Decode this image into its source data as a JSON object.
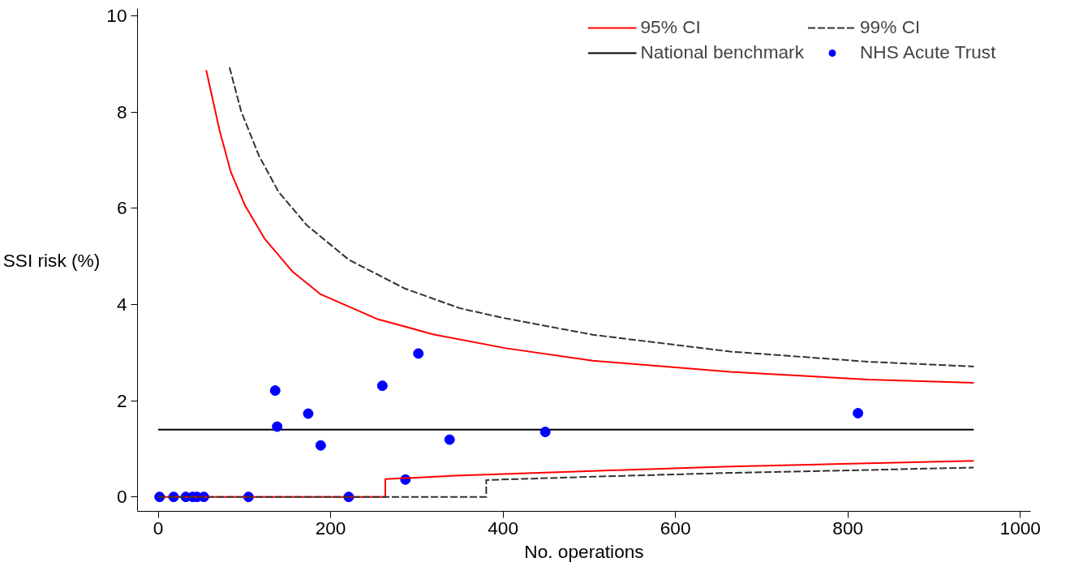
{
  "chart_data": {
    "type": "line",
    "xlabel": "No. operations",
    "ylabel": "SSI risk (%)",
    "xlim": [
      -24,
      1012
    ],
    "ylim": [
      -0.3,
      10.15
    ],
    "xticks": [
      0,
      200,
      400,
      600,
      800,
      1000
    ],
    "yticks": [
      0,
      2,
      4,
      6,
      8,
      10
    ],
    "grid": false,
    "legend": "top right",
    "series": [
      {
        "name": "95% CI",
        "color": "#ff0000",
        "line_style": "solid",
        "x": [
          55.7,
          71.3,
          84.3,
          100.6,
          123.3,
          156,
          188.5,
          253.6,
          318.7,
          403.3,
          504,
          663.6,
          823,
          946
        ],
        "values": [
          8.87,
          7.61,
          6.75,
          6.06,
          5.37,
          4.68,
          4.21,
          3.7,
          3.38,
          3.09,
          2.83,
          2.6,
          2.44,
          2.37
        ]
      },
      {
        "name": "99% CI",
        "color": "#333333",
        "line_style": "dashed",
        "x": [
          82.7,
          96.3,
          116.9,
          139.6,
          172.2,
          221,
          286.1,
          350,
          400.2,
          504,
          663.6,
          823,
          946
        ],
        "values": [
          8.93,
          8.01,
          7.09,
          6.34,
          5.65,
          4.93,
          4.33,
          3.92,
          3.72,
          3.37,
          3.02,
          2.81,
          2.71
        ]
      },
      {
        "name": "National benchmark",
        "color": "#000000",
        "line_style": "solid",
        "x": [
          0,
          946
        ],
        "values": [
          1.4,
          1.4
        ]
      },
      {
        "name": "NHS Acute Trust",
        "type": "scatter",
        "color": "#0000ff",
        "marker": "circle",
        "x": [
          1.6,
          17.9,
          32,
          40,
          45,
          53,
          104.8,
          221,
          135.7,
          138,
          174,
          188.5,
          260,
          301.8,
          286.8,
          338,
          449,
          811.7
        ],
        "values": [
          0,
          0,
          0,
          0,
          0,
          0,
          0,
          0,
          2.21,
          1.46,
          1.73,
          1.07,
          2.31,
          2.98,
          0.36,
          1.19,
          1.35,
          1.74
        ]
      },
      {
        "color": "#ff0000",
        "line_style": "solid",
        "x": [
          0,
          263.4,
          263.4,
          344.7,
          504,
          663.6,
          823,
          946
        ],
        "values": [
          0,
          0,
          0.37,
          0.44,
          0.54,
          0.63,
          0.7,
          0.75
        ]
      },
      {
        "color": "#333333",
        "line_style": "dashed",
        "x": [
          0,
          380.5,
          380.5,
          504,
          663.6,
          823,
          946
        ],
        "values": [
          0,
          0,
          0.35,
          0.42,
          0.5,
          0.56,
          0.61
        ]
      }
    ]
  }
}
